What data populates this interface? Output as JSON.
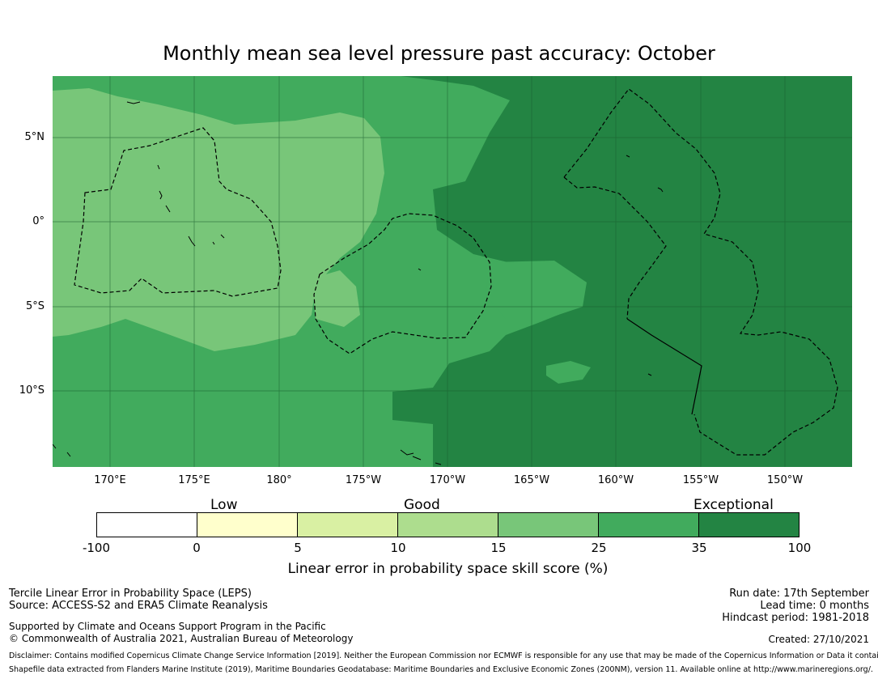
{
  "title": "Monthly mean sea level pressure past accuracy: October",
  "map": {
    "lat_labels": [
      "5°N",
      "0°",
      "5°S",
      "10°S"
    ],
    "lon_labels": [
      "170°E",
      "175°E",
      "180°",
      "175°W",
      "170°W",
      "165°W",
      "160°W",
      "155°W",
      "150°W"
    ],
    "colors": {
      "band_15_25": "#78c679",
      "band_25_35": "#41ab5d",
      "band_35_100": "#238443",
      "grid": "#1a5e2e",
      "boundary": "#000000"
    }
  },
  "colorbar": {
    "category_labels": [
      "Low",
      "Good",
      "Exceptional"
    ],
    "ticks": [
      "-100",
      "0",
      "5",
      "10",
      "15",
      "25",
      "35",
      "100"
    ],
    "colors": [
      "#ffffff",
      "#ffffcc",
      "#d9f0a3",
      "#addd8e",
      "#78c679",
      "#41ab5d",
      "#238443"
    ],
    "title": "Linear error in probability space skill score (%)"
  },
  "footer": {
    "method": "Tercile Linear Error in Probability Space (LEPS)",
    "source": "Source: ACCESS-S2 and ERA5 Climate Reanalysis",
    "support": "Supported by Climate and Oceans Support Program in the Pacific",
    "copyright": "© Commonwealth of Australia 2021, Australian Bureau of Meteorology",
    "run_date": "Run date: 17th September",
    "lead_time": "Lead time: 0 months",
    "hindcast": "Hindcast period: 1981-2018",
    "created": "Created: 27/10/2021",
    "disclaimer": "Disclaimer: Contains modified Copernicus Climate Change Service Information [2019]. Neither the European Commission nor ECMWF is responsible for any use that may be made of the Copernicus Information or Data it contains.",
    "shapefile": "Shapefile data extracted from Flanders Marine Institute (2019), Maritime Boundaries Geodatabase: Maritime Boundaries and Exclusive Economic Zones (200NM), version 11. Available online at http://www.marineregions.org/."
  }
}
